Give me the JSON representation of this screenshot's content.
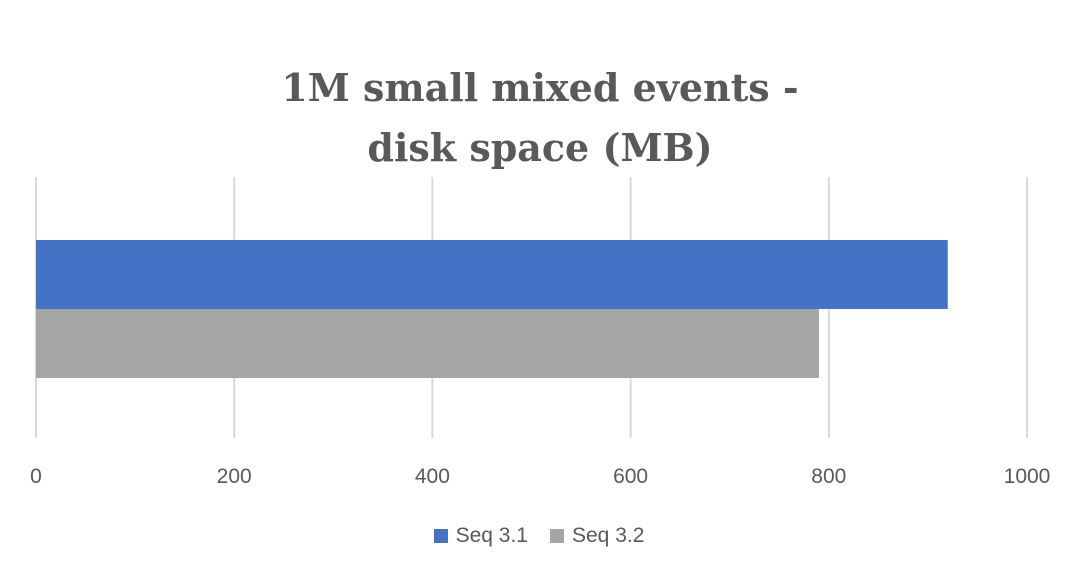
{
  "chart_data": {
    "type": "bar",
    "orientation": "horizontal",
    "title_line1": "1M small mixed events -",
    "title_line2": "disk space (MB)",
    "categories": [
      ""
    ],
    "series": [
      {
        "name": "Seq 3.1",
        "values": [
          920
        ],
        "color": "#4472C4"
      },
      {
        "name": "Seq 3.2",
        "values": [
          790
        ],
        "color": "#A5A5A5"
      }
    ],
    "xlim": [
      0,
      1000
    ],
    "x_ticks": [
      0,
      200,
      400,
      600,
      800,
      1000
    ],
    "x_tick_labels": [
      "0",
      "200",
      "400",
      "600",
      "800",
      "1000"
    ],
    "grid": "vertical",
    "legend_position": "bottom",
    "xlabel": "",
    "ylabel": ""
  }
}
